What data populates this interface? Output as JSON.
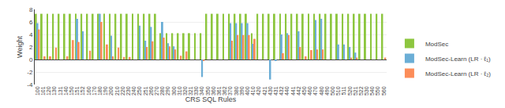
{
  "chart_data": {
    "type": "bar",
    "xlabel": "CRS SQL Rules",
    "ylabel": "Weight",
    "categories": [
      "100",
      "101",
      "120",
      "130",
      "131",
      "140",
      "150",
      "151",
      "152",
      "160",
      "170",
      "180",
      "190",
      "200",
      "210",
      "220",
      "230",
      "240",
      "250",
      "251",
      "260",
      "270",
      "280",
      "290",
      "300",
      "310",
      "320",
      "321",
      "330",
      "340",
      "350",
      "360",
      "361",
      "362",
      "370",
      "380",
      "390",
      "400",
      "410",
      "420",
      "421",
      "430",
      "431",
      "432",
      "440",
      "441",
      "442",
      "450",
      "460",
      "470",
      "480",
      "490",
      "500",
      "510",
      "511",
      "520",
      "521",
      "522",
      "530",
      "540",
      "550",
      "560"
    ],
    "series": [
      {
        "name": "ModSec",
        "color": "#8dc63f",
        "values": [
          7.3,
          7.3,
          7.3,
          7.3,
          7.3,
          7.3,
          7.3,
          7.3,
          7.3,
          7.3,
          7.3,
          7.3,
          7.3,
          7.3,
          7.3,
          7.3,
          7.3,
          7.3,
          7.3,
          7.3,
          7.3,
          7.3,
          4.2,
          4.2,
          4.2,
          4.2,
          4.2,
          4.2,
          4.2,
          4.2,
          7.3,
          7.3,
          7.3,
          7.3,
          7.3,
          7.3,
          7.3,
          7.3,
          4.2,
          7.3,
          7.3,
          7.3,
          7.3,
          7.3,
          7.3,
          7.3,
          7.3,
          7.3,
          7.3,
          7.3,
          7.3,
          7.3,
          7.3,
          7.3,
          7.3,
          7.3,
          7.3,
          7.3,
          7.3,
          7.3,
          7.3,
          7.3
        ]
      },
      {
        "name": "ModSec-Learn (LR · ℓ₁)",
        "color": "#6baed6",
        "values": [
          5.8,
          0.0,
          0.0,
          0.0,
          0.0,
          0.0,
          0.0,
          6.5,
          4.5,
          0.0,
          0.0,
          7.3,
          0.0,
          3.8,
          0.0,
          0.0,
          0.0,
          0.0,
          5.4,
          3.0,
          5.2,
          0.0,
          6.0,
          2.6,
          2.1,
          0.0,
          0.0,
          0.0,
          0.0,
          -2.8,
          0.0,
          0.0,
          0.0,
          0.0,
          5.8,
          5.8,
          5.8,
          5.8,
          2.5,
          0.0,
          0.0,
          -3.2,
          -0.15,
          4.0,
          4.2,
          0.0,
          4.5,
          0.0,
          0.0,
          6.3,
          6.5,
          0.0,
          0.0,
          2.4,
          2.4,
          2.0,
          1.1,
          0.0,
          0.0,
          0.0,
          0.0,
          0.0
        ]
      },
      {
        "name": "ModSec-Learn (LR · ℓ₂)",
        "color": "#fc8d59",
        "values": [
          4.8,
          0.5,
          0.5,
          1.9,
          0.0,
          0.5,
          3.1,
          2.8,
          0.0,
          1.4,
          0.0,
          6.0,
          2.4,
          0.5,
          1.9,
          0.4,
          0.4,
          0.0,
          0.0,
          2.0,
          2.9,
          0.0,
          3.5,
          2.1,
          1.6,
          0.6,
          1.3,
          0.0,
          0.0,
          -0.15,
          0.0,
          0.0,
          0.0,
          0.0,
          3.0,
          3.9,
          3.9,
          3.9,
          3.3,
          0.0,
          0.0,
          0.0,
          0.0,
          1.0,
          3.9,
          0.0,
          2.0,
          0.5,
          1.5,
          1.6,
          1.6,
          0.0,
          0.0,
          0.0,
          0.0,
          0.3,
          0.3,
          0.0,
          0.0,
          0.0,
          0.0,
          0.3
        ]
      }
    ],
    "ylim": [
      -4,
      8
    ],
    "yticks": [
      -4,
      -2,
      0,
      2,
      4,
      6,
      8
    ],
    "grid": true,
    "legend": "lower right"
  }
}
